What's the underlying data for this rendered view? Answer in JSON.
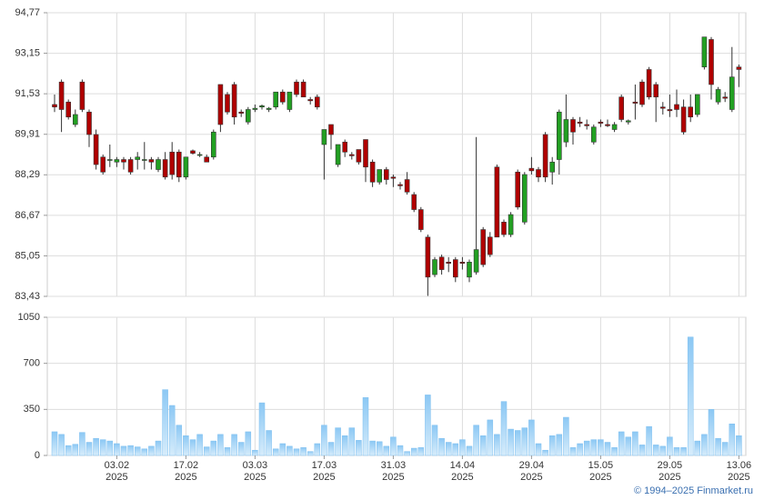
{
  "chart_data": [
    {
      "type": "candlestick",
      "up_color": "#22a022",
      "down_color": "#b00000",
      "edge_color": "#333333",
      "grid": true,
      "ylim": [
        83.43,
        94.77
      ],
      "yticks": [
        {
          "value": 83.43,
          "label": "83,43"
        },
        {
          "value": 85.05,
          "label": "85,05"
        },
        {
          "value": 86.67,
          "label": "86,67"
        },
        {
          "value": 88.29,
          "label": "88,29"
        },
        {
          "value": 89.91,
          "label": "89,91"
        },
        {
          "value": 91.53,
          "label": "91,53"
        },
        {
          "value": 93.15,
          "label": "93,15"
        },
        {
          "value": 94.77,
          "label": "94,77"
        }
      ],
      "open": [
        91.1,
        92.0,
        91.2,
        90.3,
        92.0,
        90.8,
        89.9,
        89.0,
        88.9,
        88.8,
        88.9,
        88.9,
        88.9,
        88.9,
        88.9,
        88.5,
        88.9,
        89.2,
        89.2,
        88.2,
        89.25,
        89.1,
        89.0,
        89.0,
        91.9,
        91.5,
        91.9,
        90.8,
        90.4,
        90.9,
        91.0,
        90.9,
        91.0,
        91.6,
        90.9,
        92.0,
        92.0,
        91.3,
        91.4,
        89.5,
        90.3,
        88.7,
        89.6,
        89.1,
        89.3,
        89.7,
        88.8,
        88.0,
        88.5,
        88.2,
        87.9,
        88.1,
        87.5,
        86.9,
        85.8,
        84.3,
        85.0,
        84.8,
        84.9,
        84.8,
        84.2,
        84.4,
        86.1,
        85.8,
        88.6,
        86.4,
        85.9,
        88.4,
        86.4,
        88.55,
        88.5,
        89.9,
        88.4,
        88.9,
        89.6,
        90.5,
        90.4,
        90.3,
        89.6,
        90.4,
        90.3,
        90.1,
        91.4,
        90.4,
        91.2,
        92.0,
        92.5,
        91.9,
        91.0,
        90.9,
        91.1,
        91.0,
        91.0,
        90.7,
        92.6,
        93.7,
        91.2,
        91.4,
        90.9,
        92.6
      ],
      "high": [
        91.5,
        92.1,
        91.3,
        90.9,
        92.1,
        90.9,
        90.1,
        89.1,
        89.5,
        89.0,
        89.0,
        89.0,
        89.2,
        89.6,
        89.0,
        89.0,
        89.2,
        89.6,
        89.3,
        89.0,
        89.3,
        89.2,
        89.1,
        90.1,
        91.9,
        91.6,
        92.0,
        90.9,
        91.0,
        91.1,
        91.1,
        91.0,
        91.6,
        91.7,
        91.6,
        92.1,
        92.1,
        91.4,
        91.5,
        90.1,
        90.3,
        89.5,
        89.7,
        89.2,
        89.3,
        89.7,
        88.9,
        88.5,
        88.6,
        88.3,
        88.0,
        88.4,
        87.6,
        87.0,
        85.9,
        85.0,
        85.1,
        85.0,
        85.0,
        85.0,
        84.9,
        89.8,
        86.2,
        86.0,
        88.7,
        86.5,
        86.8,
        88.5,
        88.4,
        89.0,
        88.6,
        90.0,
        89.0,
        90.9,
        91.5,
        90.6,
        90.6,
        90.5,
        90.3,
        90.5,
        90.5,
        90.4,
        91.5,
        90.5,
        91.9,
        92.1,
        92.6,
        92.0,
        91.2,
        91.5,
        91.7,
        91.3,
        91.5,
        91.5,
        93.8,
        93.8,
        91.8,
        91.6,
        93.4,
        92.7
      ],
      "low": [
        90.8,
        90.0,
        90.5,
        90.2,
        90.8,
        89.4,
        88.5,
        88.3,
        88.6,
        88.6,
        88.5,
        88.3,
        88.5,
        88.5,
        88.5,
        88.4,
        88.1,
        88.1,
        88.0,
        88.1,
        89.1,
        89.0,
        88.8,
        88.9,
        90.0,
        90.7,
        90.3,
        90.6,
        90.3,
        90.8,
        90.9,
        90.8,
        90.9,
        91.1,
        90.8,
        91.4,
        91.4,
        91.1,
        90.9,
        88.1,
        89.3,
        88.6,
        89.0,
        88.9,
        88.7,
        88.0,
        87.8,
        87.9,
        87.9,
        87.8,
        87.7,
        87.5,
        86.8,
        86.0,
        83.45,
        84.2,
        84.3,
        84.4,
        84.0,
        84.5,
        84.0,
        84.3,
        84.6,
        85.0,
        85.8,
        85.8,
        85.8,
        86.9,
        86.3,
        88.3,
        88.0,
        88.0,
        87.9,
        88.3,
        89.4,
        89.5,
        90.2,
        90.1,
        89.5,
        90.2,
        90.2,
        90.0,
        90.4,
        90.3,
        90.5,
        91.0,
        91.3,
        90.4,
        90.7,
        90.6,
        90.6,
        89.9,
        90.4,
        90.6,
        92.5,
        91.3,
        91.1,
        91.2,
        90.8,
        91.8
      ],
      "close": [
        91.0,
        90.9,
        90.6,
        90.7,
        90.9,
        89.9,
        88.7,
        88.4,
        88.9,
        88.9,
        88.8,
        88.4,
        89.0,
        88.9,
        88.8,
        88.9,
        88.2,
        88.3,
        88.2,
        89.0,
        89.15,
        89.1,
        88.8,
        90.0,
        90.3,
        90.8,
        90.6,
        90.75,
        90.9,
        90.95,
        91.05,
        90.95,
        91.6,
        91.2,
        91.6,
        91.5,
        91.4,
        91.25,
        91.0,
        90.1,
        89.9,
        89.5,
        89.2,
        89.05,
        88.8,
        88.6,
        88.0,
        88.5,
        88.1,
        88.15,
        87.85,
        87.6,
        86.9,
        86.1,
        84.2,
        84.9,
        84.5,
        84.75,
        84.2,
        84.75,
        84.8,
        85.3,
        84.7,
        85.1,
        85.8,
        85.9,
        86.7,
        87.0,
        88.3,
        88.45,
        88.2,
        88.2,
        88.8,
        90.8,
        90.5,
        90.0,
        90.35,
        90.25,
        90.2,
        90.35,
        90.25,
        90.3,
        90.5,
        90.45,
        91.15,
        91.1,
        91.4,
        91.4,
        90.95,
        90.85,
        90.9,
        90.0,
        90.6,
        91.5,
        93.8,
        91.9,
        91.7,
        91.35,
        92.2,
        92.5
      ]
    },
    {
      "type": "bar",
      "color": "#7fc0f0",
      "grid": true,
      "ylim": [
        0,
        1050
      ],
      "yticks": [
        0,
        350,
        700,
        1050
      ],
      "categories": [
        null,
        null,
        null,
        null,
        null,
        null,
        null,
        null,
        null,
        "03.02\n2025",
        null,
        null,
        null,
        null,
        null,
        null,
        null,
        null,
        null,
        "17.02\n2025",
        null,
        null,
        null,
        null,
        null,
        null,
        null,
        null,
        null,
        "03.03\n2025",
        null,
        null,
        null,
        null,
        null,
        null,
        null,
        null,
        null,
        "17.03\n2025",
        null,
        null,
        null,
        null,
        null,
        null,
        null,
        null,
        null,
        "31.03\n2025",
        null,
        null,
        null,
        null,
        null,
        null,
        null,
        null,
        null,
        "14.04\n2025",
        null,
        null,
        null,
        null,
        null,
        null,
        null,
        null,
        null,
        "29.04\n2025",
        null,
        null,
        null,
        null,
        null,
        null,
        null,
        null,
        null,
        "15.05\n2025",
        null,
        null,
        null,
        null,
        null,
        null,
        null,
        null,
        null,
        "29.05\n2025",
        null,
        null,
        null,
        null,
        null,
        null,
        null,
        null,
        null,
        "13.06\n2025"
      ],
      "values": [
        180,
        160,
        75,
        85,
        175,
        100,
        130,
        120,
        110,
        90,
        70,
        75,
        65,
        50,
        70,
        110,
        500,
        380,
        230,
        150,
        120,
        160,
        65,
        110,
        160,
        60,
        160,
        100,
        180,
        40,
        400,
        190,
        50,
        90,
        70,
        50,
        60,
        30,
        90,
        230,
        100,
        210,
        150,
        210,
        115,
        440,
        110,
        105,
        70,
        140,
        75,
        30,
        55,
        60,
        460,
        230,
        130,
        100,
        90,
        120,
        70,
        230,
        150,
        270,
        160,
        410,
        200,
        190,
        210,
        270,
        90,
        40,
        150,
        160,
        290,
        60,
        90,
        110,
        120,
        120,
        100,
        60,
        180,
        140,
        180,
        80,
        220,
        80,
        70,
        140,
        60,
        60,
        900,
        110,
        160,
        350,
        130,
        100,
        240,
        150
      ]
    }
  ],
  "footer": "© 1994–2025 Finmarket.ru"
}
